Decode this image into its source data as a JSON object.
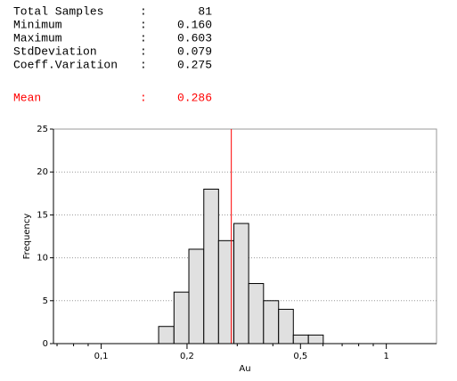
{
  "stats": [
    {
      "label": "Total Samples",
      "value": "81"
    },
    {
      "label": "Minimum",
      "value": "0.160"
    },
    {
      "label": "Maximum",
      "value": "0.603"
    },
    {
      "label": "StdDeviation",
      "value": "0.079"
    },
    {
      "label": "Coeff.Variation",
      "value": "0.275"
    }
  ],
  "mean_label": "Mean",
  "separator": ":",
  "chart_data": {
    "type": "histogram",
    "bins": [
      0.159,
      0.18,
      0.203,
      0.229,
      0.258,
      0.292,
      0.329,
      0.371,
      0.419,
      0.472,
      0.533,
      0.601
    ],
    "values": [
      2,
      6,
      11,
      18,
      12,
      14,
      7,
      5,
      4,
      1,
      1
    ],
    "color": "#e0e0e0",
    "mean": 0.286,
    "mean_color": "#ff0000",
    "x_label": "Au",
    "y_label": "Frequency",
    "xscale": "log",
    "xlim": [
      0.068,
      1.5
    ],
    "xticks": [
      {
        "value": 0.1,
        "label": "0,1"
      },
      {
        "value": 0.2,
        "label": "0,2"
      },
      {
        "value": 0.5,
        "label": "0,5"
      },
      1
    ],
    "xminor_ticks": [
      0.07,
      0.08,
      0.09,
      0.3,
      0.4,
      0.6,
      0.7,
      0.8,
      0.9
    ],
    "ylim": [
      0,
      25
    ],
    "yticks": [
      0,
      5,
      10,
      15,
      20,
      25
    ],
    "grid": true
  }
}
